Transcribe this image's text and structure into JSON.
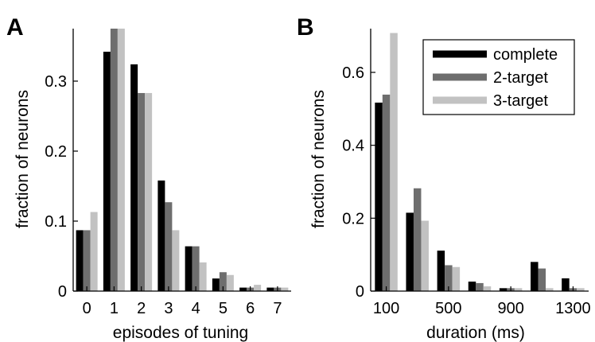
{
  "colors": {
    "complete": "#000000",
    "2-target": "#6e6e6e",
    "3-target": "#c2c2c2",
    "axis": "#000000",
    "background": "#ffffff"
  },
  "chart_data": [
    {
      "panel": "A",
      "type": "bar",
      "xlabel": "episodes of tuning",
      "ylabel": "fraction of neurons",
      "categories": [
        "0",
        "1",
        "2",
        "3",
        "4",
        "5",
        "6",
        "7"
      ],
      "ylim": [
        0,
        0.375
      ],
      "yticks": [
        "0",
        "0.1",
        "0.2",
        "0.3"
      ],
      "ytick_values": [
        0,
        0.1,
        0.2,
        0.3
      ],
      "grid": false,
      "series": [
        {
          "name": "complete",
          "values": [
            0.087,
            0.342,
            0.324,
            0.158,
            0.064,
            0.018,
            0.005,
            0.005
          ]
        },
        {
          "name": "2-target",
          "values": [
            0.087,
            0.375,
            0.283,
            0.127,
            0.064,
            0.027,
            0.005,
            0.005
          ]
        },
        {
          "name": "3-target",
          "values": [
            0.113,
            0.375,
            0.283,
            0.087,
            0.041,
            0.023,
            0.009,
            0.005
          ]
        }
      ]
    },
    {
      "panel": "B",
      "type": "bar",
      "xlabel": "duration (ms)",
      "ylabel": "fraction of neurons",
      "categories": [
        "100",
        "300",
        "500",
        "700",
        "900",
        "1100",
        "1300"
      ],
      "xticks": [
        "100",
        "500",
        "900",
        "1300"
      ],
      "ylim": [
        0,
        0.72
      ],
      "yticks": [
        "0",
        "0.2",
        "0.4",
        "0.6"
      ],
      "ytick_values": [
        0,
        0.2,
        0.4,
        0.6
      ],
      "grid": false,
      "legend_position": "top-right",
      "legend": [
        "complete",
        "2-target",
        "3-target"
      ],
      "series": [
        {
          "name": "complete",
          "values": [
            0.517,
            0.215,
            0.111,
            0.026,
            0.008,
            0.08,
            0.035
          ]
        },
        {
          "name": "2-target",
          "values": [
            0.539,
            0.282,
            0.071,
            0.022,
            0.008,
            0.062,
            0.008
          ]
        },
        {
          "name": "3-target",
          "values": [
            0.708,
            0.193,
            0.066,
            0.013,
            0.008,
            0.008,
            0.008
          ]
        }
      ]
    }
  ]
}
